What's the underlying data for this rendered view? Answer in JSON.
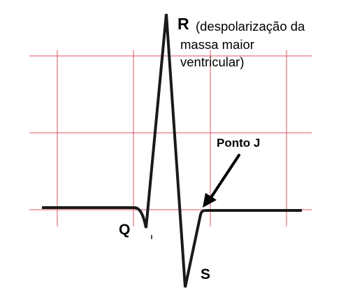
{
  "labels": {
    "r_letter": "R",
    "r_description_line1": "(despolarização da",
    "r_description_line2": "massa maior",
    "r_description_line3": "ventricular)",
    "q_letter": "Q",
    "s_letter": "S",
    "j_point": "Ponto J"
  },
  "colors": {
    "grid": "#d9535f",
    "trace": "#1a1a1a",
    "arrow": "#000000",
    "text": "#000000"
  }
}
